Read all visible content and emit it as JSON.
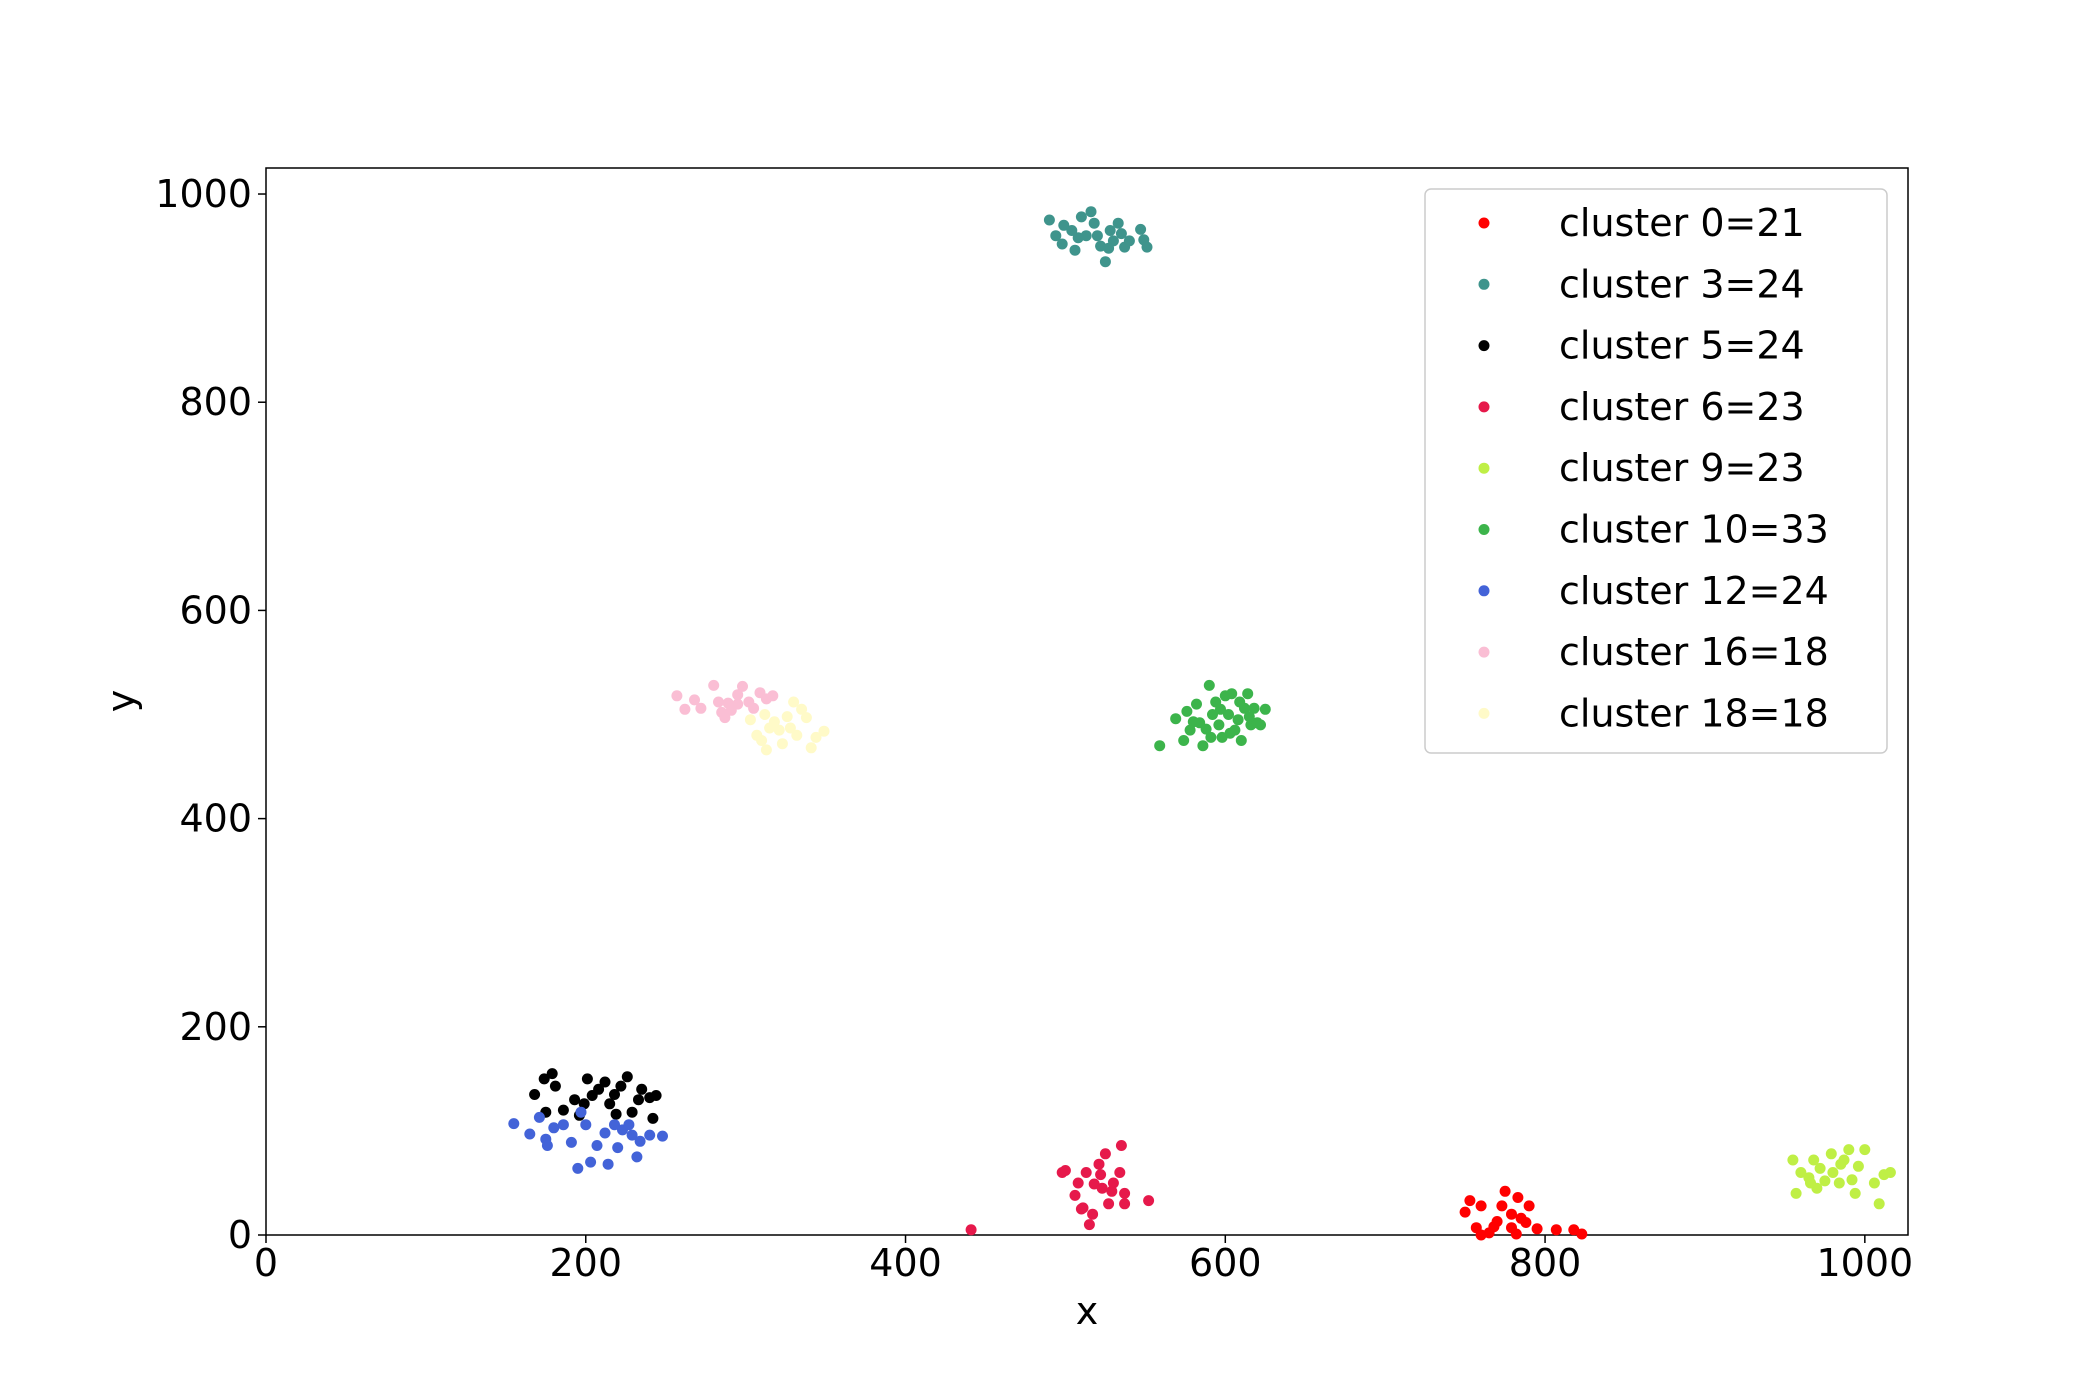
{
  "chart_data": {
    "type": "scatter",
    "title": "",
    "xlabel": "x",
    "ylabel": "y",
    "xlim": [
      0,
      1027
    ],
    "ylim": [
      0,
      1025
    ],
    "xticks": [
      0,
      200,
      400,
      600,
      800,
      1000
    ],
    "yticks": [
      0,
      200,
      400,
      600,
      800,
      1000
    ],
    "grid": false,
    "legend_position": "top-right",
    "series": [
      {
        "name": "cluster 0=21",
        "color": "#ff0000",
        "points": [
          [
            750,
            22
          ],
          [
            753,
            33
          ],
          [
            760,
            28
          ],
          [
            757,
            7
          ],
          [
            765,
            2
          ],
          [
            770,
            13
          ],
          [
            773,
            28
          ],
          [
            775,
            42
          ],
          [
            779,
            20
          ],
          [
            783,
            36
          ],
          [
            768,
            8
          ],
          [
            779,
            7
          ],
          [
            782,
            1
          ],
          [
            788,
            12
          ],
          [
            795,
            6
          ],
          [
            807,
            5
          ],
          [
            818,
            5
          ],
          [
            823,
            1
          ],
          [
            760,
            0
          ],
          [
            790,
            28
          ],
          [
            785,
            16
          ]
        ]
      },
      {
        "name": "cluster 3=24",
        "color": "#3f948c",
        "points": [
          [
            490,
            975
          ],
          [
            494,
            960
          ],
          [
            499,
            970
          ],
          [
            504,
            965
          ],
          [
            506,
            946
          ],
          [
            510,
            978
          ],
          [
            513,
            960
          ],
          [
            516,
            983
          ],
          [
            518,
            972
          ],
          [
            520,
            960
          ],
          [
            522,
            950
          ],
          [
            525,
            935
          ],
          [
            528,
            965
          ],
          [
            530,
            955
          ],
          [
            533,
            972
          ],
          [
            535,
            962
          ],
          [
            537,
            949
          ],
          [
            540,
            955
          ],
          [
            547,
            966
          ],
          [
            549,
            956
          ],
          [
            551,
            949
          ],
          [
            498,
            952
          ],
          [
            508,
            958
          ],
          [
            527,
            948
          ]
        ]
      },
      {
        "name": "cluster 5=24",
        "color": "#000000",
        "points": [
          [
            168,
            135
          ],
          [
            174,
            150
          ],
          [
            179,
            155
          ],
          [
            181,
            143
          ],
          [
            186,
            120
          ],
          [
            175,
            118
          ],
          [
            193,
            130
          ],
          [
            196,
            115
          ],
          [
            201,
            150
          ],
          [
            204,
            134
          ],
          [
            208,
            140
          ],
          [
            212,
            147
          ],
          [
            215,
            126
          ],
          [
            218,
            135
          ],
          [
            219,
            116
          ],
          [
            222,
            143
          ],
          [
            226,
            152
          ],
          [
            229,
            118
          ],
          [
            233,
            130
          ],
          [
            235,
            140
          ],
          [
            240,
            132
          ],
          [
            242,
            112
          ],
          [
            244,
            134
          ],
          [
            199,
            126
          ]
        ]
      },
      {
        "name": "cluster 6=23",
        "color": "#e6194b",
        "points": [
          [
            441,
            5
          ],
          [
            498,
            60
          ],
          [
            506,
            38
          ],
          [
            511,
            26
          ],
          [
            513,
            60
          ],
          [
            515,
            10
          ],
          [
            517,
            20
          ],
          [
            518,
            49
          ],
          [
            521,
            68
          ],
          [
            523,
            45
          ],
          [
            525,
            78
          ],
          [
            527,
            30
          ],
          [
            530,
            50
          ],
          [
            534,
            60
          ],
          [
            537,
            40
          ],
          [
            535,
            86
          ],
          [
            537,
            30
          ],
          [
            552,
            33
          ],
          [
            508,
            50
          ],
          [
            522,
            58
          ],
          [
            529,
            42
          ],
          [
            510,
            25
          ],
          [
            500,
            62
          ]
        ]
      },
      {
        "name": "cluster 9=23",
        "color": "#bfef45",
        "points": [
          [
            955,
            72
          ],
          [
            957,
            40
          ],
          [
            960,
            60
          ],
          [
            965,
            55
          ],
          [
            968,
            72
          ],
          [
            970,
            45
          ],
          [
            972,
            64
          ],
          [
            975,
            52
          ],
          [
            979,
            78
          ],
          [
            980,
            60
          ],
          [
            984,
            50
          ],
          [
            987,
            72
          ],
          [
            990,
            82
          ],
          [
            992,
            53
          ],
          [
            994,
            40
          ],
          [
            996,
            66
          ],
          [
            1000,
            82
          ],
          [
            1006,
            50
          ],
          [
            1009,
            30
          ],
          [
            1012,
            58
          ],
          [
            1016,
            60
          ],
          [
            966,
            50
          ],
          [
            985,
            68
          ]
        ]
      },
      {
        "name": "cluster 10=33",
        "color": "#3cb44b",
        "points": [
          [
            559,
            470
          ],
          [
            569,
            496
          ],
          [
            574,
            475
          ],
          [
            576,
            503
          ],
          [
            578,
            485
          ],
          [
            580,
            493
          ],
          [
            582,
            510
          ],
          [
            586,
            470
          ],
          [
            588,
            486
          ],
          [
            590,
            528
          ],
          [
            592,
            500
          ],
          [
            594,
            512
          ],
          [
            596,
            490
          ],
          [
            598,
            478
          ],
          [
            600,
            518
          ],
          [
            602,
            500
          ],
          [
            604,
            520
          ],
          [
            606,
            485
          ],
          [
            608,
            495
          ],
          [
            610,
            475
          ],
          [
            612,
            506
          ],
          [
            614,
            520
          ],
          [
            616,
            490
          ],
          [
            618,
            506
          ],
          [
            620,
            492
          ],
          [
            622,
            490
          ],
          [
            625,
            505
          ],
          [
            584,
            492
          ],
          [
            591,
            478
          ],
          [
            597,
            505
          ],
          [
            603,
            482
          ],
          [
            609,
            512
          ],
          [
            615,
            498
          ]
        ]
      },
      {
        "name": "cluster 12=24",
        "color": "#4363d8",
        "points": [
          [
            155,
            107
          ],
          [
            165,
            97
          ],
          [
            171,
            113
          ],
          [
            175,
            92
          ],
          [
            176,
            86
          ],
          [
            180,
            103
          ],
          [
            186,
            106
          ],
          [
            191,
            89
          ],
          [
            195,
            64
          ],
          [
            197,
            118
          ],
          [
            200,
            106
          ],
          [
            203,
            70
          ],
          [
            207,
            86
          ],
          [
            212,
            98
          ],
          [
            214,
            68
          ],
          [
            218,
            106
          ],
          [
            220,
            84
          ],
          [
            223,
            101
          ],
          [
            227,
            106
          ],
          [
            229,
            96
          ],
          [
            232,
            75
          ],
          [
            234,
            90
          ],
          [
            240,
            96
          ],
          [
            248,
            95
          ]
        ]
      },
      {
        "name": "cluster 16=18",
        "color": "#fabed4",
        "points": [
          [
            257,
            518
          ],
          [
            262,
            505
          ],
          [
            268,
            514
          ],
          [
            272,
            506
          ],
          [
            280,
            528
          ],
          [
            283,
            512
          ],
          [
            285,
            502
          ],
          [
            287,
            497
          ],
          [
            289,
            511
          ],
          [
            291,
            504
          ],
          [
            295,
            519
          ],
          [
            298,
            527
          ],
          [
            302,
            512
          ],
          [
            305,
            506
          ],
          [
            309,
            521
          ],
          [
            313,
            515
          ],
          [
            317,
            518
          ],
          [
            295,
            510
          ]
        ]
      },
      {
        "name": "cluster 18=18",
        "color": "#fffac8",
        "points": [
          [
            303,
            495
          ],
          [
            307,
            480
          ],
          [
            310,
            475
          ],
          [
            313,
            466
          ],
          [
            315,
            487
          ],
          [
            318,
            493
          ],
          [
            321,
            485
          ],
          [
            323,
            472
          ],
          [
            326,
            498
          ],
          [
            328,
            487
          ],
          [
            330,
            512
          ],
          [
            332,
            480
          ],
          [
            335,
            505
          ],
          [
            338,
            497
          ],
          [
            341,
            468
          ],
          [
            344,
            478
          ],
          [
            349,
            484
          ],
          [
            312,
            500
          ]
        ]
      }
    ]
  }
}
